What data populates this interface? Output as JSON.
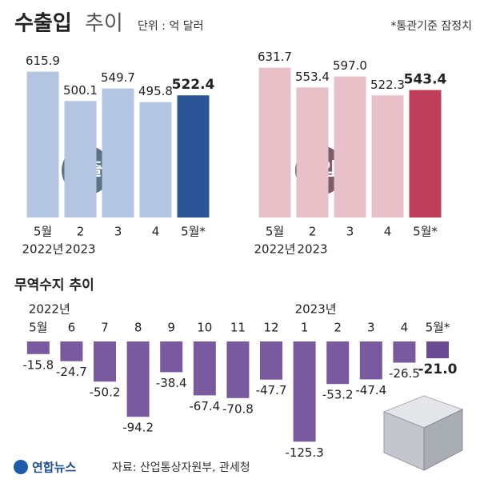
{
  "header": {
    "title_bold": "수출입",
    "title_light": "추이",
    "unit": "단위 : 억 달러",
    "note": "*통관기준 잠정치"
  },
  "chart_data": [
    {
      "type": "bar",
      "label": "수출",
      "categories": [
        "5월",
        "2",
        "3",
        "4",
        "5월*"
      ],
      "category_years": [
        "2022년",
        "2023",
        null,
        null,
        null
      ],
      "values": [
        615.9,
        500.1,
        549.7,
        495.8,
        522.4
      ],
      "colors": [
        "#b3c5e1",
        "#b3c5e1",
        "#b3c5e1",
        "#b3c5e1",
        "#2b5597"
      ],
      "ylim": [
        40,
        700
      ]
    },
    {
      "type": "bar",
      "label": "수입",
      "categories": [
        "5월",
        "2",
        "3",
        "4",
        "5월*"
      ],
      "category_years": [
        "2022년",
        "2023",
        null,
        null,
        null
      ],
      "values": [
        631.7,
        553.4,
        597.0,
        522.3,
        543.4
      ],
      "value_labels": [
        "631.7",
        "553.4",
        "597.0",
        "522.3",
        "543.4"
      ],
      "colors": [
        "#e8c0c8",
        "#e8c0c8",
        "#e8c0c8",
        "#e8c0c8",
        "#bf3f5a"
      ],
      "ylim": [
        40,
        700
      ]
    },
    {
      "type": "bar",
      "title": "무역수지 추이",
      "categories": [
        "5월",
        "6",
        "7",
        "8",
        "9",
        "10",
        "11",
        "12",
        "1",
        "2",
        "3",
        "4",
        "5월*"
      ],
      "category_years": [
        "2022년",
        null,
        null,
        null,
        null,
        null,
        null,
        null,
        "2023년",
        null,
        null,
        null,
        null
      ],
      "values": [
        -15.8,
        -24.7,
        -50.2,
        -94.2,
        -38.4,
        -67.4,
        -70.8,
        -47.7,
        -125.3,
        -53.2,
        -47.4,
        -26.5,
        -21.0
      ],
      "value_labels": [
        "-15.8",
        "-24.7",
        "-50.2",
        "-94.2",
        "-38.4",
        "-67.4",
        "-70.8",
        "-47.7",
        "-125.3",
        "-53.2",
        "-47.4",
        "-26.5",
        "-21.0"
      ],
      "colors": [
        "#7a5a9e",
        "#7a5a9e",
        "#7a5a9e",
        "#7a5a9e",
        "#7a5a9e",
        "#7a5a9e",
        "#7a5a9e",
        "#7a5a9e",
        "#7a5a9e",
        "#7a5a9e",
        "#7a5a9e",
        "#7a5a9e",
        "#6a4b94"
      ],
      "ylim": [
        -130,
        0
      ]
    }
  ],
  "footer": {
    "logo": "연합뉴스",
    "source": "자료: 산업통상자원부, 관세청"
  }
}
